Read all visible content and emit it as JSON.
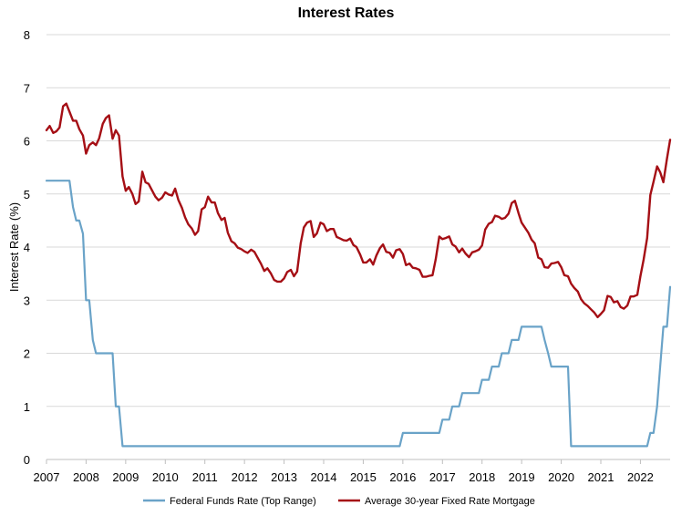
{
  "chart_data": {
    "type": "line",
    "title": "Interest Rates",
    "xlabel": "",
    "ylabel": "Interest Rate (%)",
    "xlim": [
      2007.0,
      2022.75
    ],
    "ylim": [
      0,
      8
    ],
    "x_ticks": [
      "2007",
      "2008",
      "2009",
      "2010",
      "2011",
      "2012",
      "2013",
      "2014",
      "2015",
      "2016",
      "2017",
      "2018",
      "2019",
      "2020",
      "2021",
      "2022"
    ],
    "y_ticks": [
      "0",
      "1",
      "2",
      "3",
      "4",
      "5",
      "6",
      "7",
      "8"
    ],
    "grid": "horizontal",
    "legend_position": "bottom",
    "series": [
      {
        "name": "Federal Funds Rate (Top Range)",
        "color": "#6aa3c8",
        "points": [
          [
            2007.0,
            5.25
          ],
          [
            2007.5,
            5.25
          ],
          [
            2007.58,
            5.25
          ],
          [
            2007.67,
            4.75
          ],
          [
            2007.75,
            4.5
          ],
          [
            2007.83,
            4.5
          ],
          [
            2007.92,
            4.25
          ],
          [
            2008.0,
            3.0
          ],
          [
            2008.08,
            3.0
          ],
          [
            2008.17,
            2.25
          ],
          [
            2008.25,
            2.0
          ],
          [
            2008.5,
            2.0
          ],
          [
            2008.67,
            2.0
          ],
          [
            2008.75,
            1.0
          ],
          [
            2008.83,
            1.0
          ],
          [
            2008.92,
            0.25
          ],
          [
            2015.92,
            0.25
          ],
          [
            2016.0,
            0.5
          ],
          [
            2016.92,
            0.5
          ],
          [
            2017.0,
            0.75
          ],
          [
            2017.17,
            0.75
          ],
          [
            2017.25,
            1.0
          ],
          [
            2017.42,
            1.0
          ],
          [
            2017.5,
            1.25
          ],
          [
            2017.92,
            1.25
          ],
          [
            2018.0,
            1.5
          ],
          [
            2018.17,
            1.5
          ],
          [
            2018.25,
            1.75
          ],
          [
            2018.42,
            1.75
          ],
          [
            2018.5,
            2.0
          ],
          [
            2018.67,
            2.0
          ],
          [
            2018.75,
            2.25
          ],
          [
            2018.92,
            2.25
          ],
          [
            2019.0,
            2.5
          ],
          [
            2019.5,
            2.5
          ],
          [
            2019.58,
            2.25
          ],
          [
            2019.67,
            2.0
          ],
          [
            2019.75,
            1.75
          ],
          [
            2019.92,
            1.75
          ],
          [
            2020.17,
            1.75
          ],
          [
            2020.25,
            0.25
          ],
          [
            2022.0,
            0.25
          ],
          [
            2022.17,
            0.25
          ],
          [
            2022.25,
            0.5
          ],
          [
            2022.33,
            0.5
          ],
          [
            2022.42,
            1.0
          ],
          [
            2022.5,
            1.75
          ],
          [
            2022.58,
            2.5
          ],
          [
            2022.67,
            2.5
          ],
          [
            2022.75,
            3.25
          ]
        ]
      },
      {
        "name": "Average 30-year Fixed Rate Mortgage",
        "color": "#a50f15",
        "points": [
          [
            2007.0,
            6.2
          ],
          [
            2007.08,
            6.28
          ],
          [
            2007.17,
            6.15
          ],
          [
            2007.25,
            6.18
          ],
          [
            2007.33,
            6.25
          ],
          [
            2007.42,
            6.65
          ],
          [
            2007.5,
            6.7
          ],
          [
            2007.58,
            6.55
          ],
          [
            2007.67,
            6.38
          ],
          [
            2007.75,
            6.38
          ],
          [
            2007.83,
            6.22
          ],
          [
            2007.92,
            6.1
          ],
          [
            2008.0,
            5.76
          ],
          [
            2008.08,
            5.92
          ],
          [
            2008.17,
            5.97
          ],
          [
            2008.25,
            5.92
          ],
          [
            2008.33,
            6.05
          ],
          [
            2008.42,
            6.32
          ],
          [
            2008.5,
            6.43
          ],
          [
            2008.58,
            6.48
          ],
          [
            2008.67,
            6.04
          ],
          [
            2008.75,
            6.2
          ],
          [
            2008.83,
            6.1
          ],
          [
            2008.92,
            5.33
          ],
          [
            2009.0,
            5.06
          ],
          [
            2009.08,
            5.13
          ],
          [
            2009.17,
            5.0
          ],
          [
            2009.25,
            4.81
          ],
          [
            2009.33,
            4.86
          ],
          [
            2009.42,
            5.42
          ],
          [
            2009.5,
            5.22
          ],
          [
            2009.58,
            5.19
          ],
          [
            2009.67,
            5.06
          ],
          [
            2009.75,
            4.95
          ],
          [
            2009.83,
            4.88
          ],
          [
            2009.92,
            4.93
          ],
          [
            2010.0,
            5.03
          ],
          [
            2010.08,
            4.99
          ],
          [
            2010.17,
            4.97
          ],
          [
            2010.25,
            5.1
          ],
          [
            2010.33,
            4.89
          ],
          [
            2010.42,
            4.74
          ],
          [
            2010.5,
            4.56
          ],
          [
            2010.58,
            4.43
          ],
          [
            2010.67,
            4.35
          ],
          [
            2010.75,
            4.23
          ],
          [
            2010.83,
            4.3
          ],
          [
            2010.92,
            4.71
          ],
          [
            2011.0,
            4.75
          ],
          [
            2011.08,
            4.95
          ],
          [
            2011.17,
            4.84
          ],
          [
            2011.25,
            4.84
          ],
          [
            2011.33,
            4.64
          ],
          [
            2011.42,
            4.51
          ],
          [
            2011.5,
            4.55
          ],
          [
            2011.58,
            4.27
          ],
          [
            2011.67,
            4.11
          ],
          [
            2011.75,
            4.07
          ],
          [
            2011.83,
            3.99
          ],
          [
            2011.92,
            3.96
          ],
          [
            2012.0,
            3.92
          ],
          [
            2012.08,
            3.89
          ],
          [
            2012.17,
            3.95
          ],
          [
            2012.25,
            3.91
          ],
          [
            2012.33,
            3.8
          ],
          [
            2012.42,
            3.68
          ],
          [
            2012.5,
            3.55
          ],
          [
            2012.58,
            3.6
          ],
          [
            2012.67,
            3.5
          ],
          [
            2012.75,
            3.38
          ],
          [
            2012.83,
            3.35
          ],
          [
            2012.92,
            3.35
          ],
          [
            2013.0,
            3.41
          ],
          [
            2013.08,
            3.53
          ],
          [
            2013.17,
            3.57
          ],
          [
            2013.25,
            3.45
          ],
          [
            2013.33,
            3.54
          ],
          [
            2013.42,
            4.07
          ],
          [
            2013.5,
            4.37
          ],
          [
            2013.58,
            4.46
          ],
          [
            2013.67,
            4.49
          ],
          [
            2013.75,
            4.19
          ],
          [
            2013.83,
            4.26
          ],
          [
            2013.92,
            4.46
          ],
          [
            2014.0,
            4.43
          ],
          [
            2014.08,
            4.3
          ],
          [
            2014.17,
            4.34
          ],
          [
            2014.25,
            4.34
          ],
          [
            2014.33,
            4.19
          ],
          [
            2014.42,
            4.16
          ],
          [
            2014.5,
            4.13
          ],
          [
            2014.58,
            4.12
          ],
          [
            2014.67,
            4.16
          ],
          [
            2014.75,
            4.04
          ],
          [
            2014.83,
            4.0
          ],
          [
            2014.92,
            3.86
          ],
          [
            2015.0,
            3.71
          ],
          [
            2015.08,
            3.71
          ],
          [
            2015.17,
            3.77
          ],
          [
            2015.25,
            3.67
          ],
          [
            2015.33,
            3.84
          ],
          [
            2015.42,
            3.98
          ],
          [
            2015.5,
            4.05
          ],
          [
            2015.58,
            3.91
          ],
          [
            2015.67,
            3.89
          ],
          [
            2015.75,
            3.8
          ],
          [
            2015.83,
            3.94
          ],
          [
            2015.92,
            3.96
          ],
          [
            2016.0,
            3.87
          ],
          [
            2016.08,
            3.66
          ],
          [
            2016.17,
            3.69
          ],
          [
            2016.25,
            3.61
          ],
          [
            2016.33,
            3.6
          ],
          [
            2016.42,
            3.57
          ],
          [
            2016.5,
            3.44
          ],
          [
            2016.58,
            3.44
          ],
          [
            2016.67,
            3.46
          ],
          [
            2016.75,
            3.47
          ],
          [
            2016.83,
            3.77
          ],
          [
            2016.92,
            4.2
          ],
          [
            2017.0,
            4.15
          ],
          [
            2017.08,
            4.17
          ],
          [
            2017.17,
            4.2
          ],
          [
            2017.25,
            4.05
          ],
          [
            2017.33,
            4.01
          ],
          [
            2017.42,
            3.9
          ],
          [
            2017.5,
            3.97
          ],
          [
            2017.58,
            3.88
          ],
          [
            2017.67,
            3.81
          ],
          [
            2017.75,
            3.9
          ],
          [
            2017.83,
            3.92
          ],
          [
            2017.92,
            3.95
          ],
          [
            2018.0,
            4.03
          ],
          [
            2018.08,
            4.33
          ],
          [
            2018.17,
            4.44
          ],
          [
            2018.25,
            4.47
          ],
          [
            2018.33,
            4.59
          ],
          [
            2018.42,
            4.57
          ],
          [
            2018.5,
            4.53
          ],
          [
            2018.58,
            4.55
          ],
          [
            2018.67,
            4.63
          ],
          [
            2018.75,
            4.83
          ],
          [
            2018.83,
            4.87
          ],
          [
            2018.92,
            4.64
          ],
          [
            2019.0,
            4.46
          ],
          [
            2019.08,
            4.37
          ],
          [
            2019.17,
            4.27
          ],
          [
            2019.25,
            4.14
          ],
          [
            2019.33,
            4.07
          ],
          [
            2019.42,
            3.8
          ],
          [
            2019.5,
            3.77
          ],
          [
            2019.58,
            3.62
          ],
          [
            2019.67,
            3.61
          ],
          [
            2019.75,
            3.69
          ],
          [
            2019.83,
            3.7
          ],
          [
            2019.92,
            3.72
          ],
          [
            2020.0,
            3.62
          ],
          [
            2020.08,
            3.47
          ],
          [
            2020.17,
            3.45
          ],
          [
            2020.25,
            3.31
          ],
          [
            2020.33,
            3.23
          ],
          [
            2020.42,
            3.16
          ],
          [
            2020.5,
            3.02
          ],
          [
            2020.58,
            2.94
          ],
          [
            2020.67,
            2.89
          ],
          [
            2020.75,
            2.83
          ],
          [
            2020.83,
            2.77
          ],
          [
            2020.92,
            2.68
          ],
          [
            2021.0,
            2.74
          ],
          [
            2021.08,
            2.81
          ],
          [
            2021.17,
            3.08
          ],
          [
            2021.25,
            3.06
          ],
          [
            2021.33,
            2.96
          ],
          [
            2021.42,
            2.98
          ],
          [
            2021.5,
            2.87
          ],
          [
            2021.58,
            2.84
          ],
          [
            2021.67,
            2.9
          ],
          [
            2021.75,
            3.07
          ],
          [
            2021.83,
            3.07
          ],
          [
            2021.92,
            3.1
          ],
          [
            2022.0,
            3.45
          ],
          [
            2022.08,
            3.76
          ],
          [
            2022.17,
            4.17
          ],
          [
            2022.25,
            4.98
          ],
          [
            2022.33,
            5.23
          ],
          [
            2022.42,
            5.52
          ],
          [
            2022.5,
            5.41
          ],
          [
            2022.58,
            5.22
          ],
          [
            2022.67,
            5.66
          ],
          [
            2022.75,
            6.02
          ]
        ]
      }
    ]
  }
}
